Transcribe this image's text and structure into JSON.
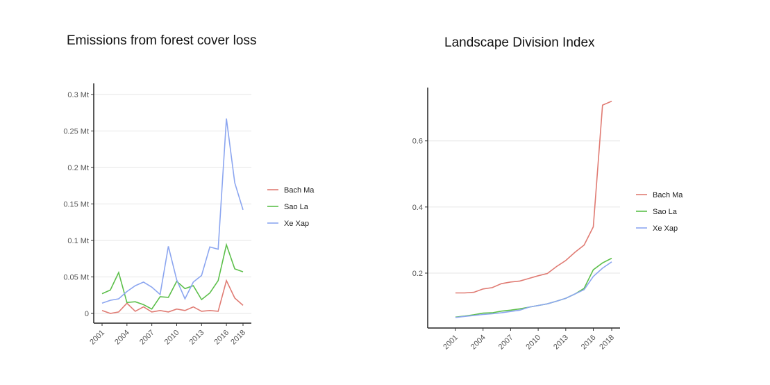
{
  "colors": {
    "Bach Ma": "#e07b73",
    "Sao La": "#5cbf4a",
    "Xe Xap": "#8ca6f0"
  },
  "chart_data": [
    {
      "type": "line",
      "title": "Emissions from forest cover loss",
      "xlabel": "",
      "ylabel": "",
      "x": [
        2001,
        2002,
        2003,
        2004,
        2005,
        2006,
        2007,
        2008,
        2009,
        2010,
        2011,
        2012,
        2013,
        2014,
        2015,
        2016,
        2017,
        2018
      ],
      "xticks": [
        "2001",
        "2004",
        "2007",
        "2010",
        "2013",
        "2016",
        "2018"
      ],
      "ylim": [
        0,
        0.3
      ],
      "yticks": [
        0,
        0.05,
        0.1,
        0.15,
        0.2,
        0.25,
        0.3
      ],
      "ytick_labels": [
        "0",
        "0.05 Mt",
        "0.1 Mt",
        "0.15 Mt",
        "0.2 Mt",
        "0.25 Mt",
        "0.3 Mt"
      ],
      "grid": true,
      "legend": "right",
      "series": [
        {
          "name": "Bach Ma",
          "values": [
            0.004,
            0.0,
            0.002,
            0.014,
            0.003,
            0.009,
            0.002,
            0.004,
            0.002,
            0.006,
            0.004,
            0.009,
            0.003,
            0.004,
            0.003,
            0.045,
            0.021,
            0.011
          ]
        },
        {
          "name": "Sao La",
          "values": [
            0.027,
            0.032,
            0.056,
            0.015,
            0.016,
            0.012,
            0.006,
            0.023,
            0.022,
            0.044,
            0.034,
            0.038,
            0.019,
            0.028,
            0.045,
            0.094,
            0.061,
            0.057
          ]
        },
        {
          "name": "Xe Xap",
          "values": [
            0.014,
            0.018,
            0.02,
            0.03,
            0.038,
            0.043,
            0.036,
            0.026,
            0.092,
            0.046,
            0.02,
            0.043,
            0.052,
            0.091,
            0.088,
            0.267,
            0.179,
            0.142
          ]
        }
      ]
    },
    {
      "type": "line",
      "title": "Landscape Division Index",
      "xlabel": "",
      "ylabel": "",
      "x": [
        2001,
        2002,
        2003,
        2004,
        2005,
        2006,
        2007,
        2008,
        2009,
        2010,
        2011,
        2012,
        2013,
        2014,
        2015,
        2016,
        2017,
        2018
      ],
      "xticks": [
        "2001",
        "2004",
        "2007",
        "2010",
        "2013",
        "2016",
        "2018"
      ],
      "ylim": [
        0.055,
        0.74
      ],
      "yticks": [
        0.2,
        0.4,
        0.6
      ],
      "ytick_labels": [
        "0.2",
        "0.4",
        "0.6"
      ],
      "grid": true,
      "legend": "right",
      "series": [
        {
          "name": "Bach Ma",
          "values": [
            0.14,
            0.14,
            0.142,
            0.152,
            0.156,
            0.168,
            0.173,
            0.176,
            0.184,
            0.192,
            0.199,
            0.22,
            0.238,
            0.263,
            0.285,
            0.34,
            0.708,
            0.72
          ]
        },
        {
          "name": "Sao La",
          "values": [
            0.067,
            0.07,
            0.074,
            0.079,
            0.08,
            0.085,
            0.088,
            0.092,
            0.097,
            0.102,
            0.107,
            0.115,
            0.124,
            0.137,
            0.154,
            0.21,
            0.231,
            0.245
          ]
        },
        {
          "name": "Xe Xap",
          "values": [
            0.066,
            0.069,
            0.072,
            0.075,
            0.077,
            0.08,
            0.084,
            0.088,
            0.097,
            0.102,
            0.107,
            0.115,
            0.124,
            0.137,
            0.15,
            0.19,
            0.215,
            0.234
          ]
        }
      ]
    }
  ]
}
